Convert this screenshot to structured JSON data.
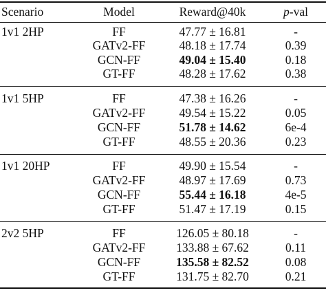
{
  "header": {
    "scenario": "Scenario",
    "model": "Model",
    "reward": "Reward@40k",
    "pval_italic": "p",
    "pval_rest": "-val"
  },
  "groups": [
    {
      "scenario": "1v1 2HP",
      "rows": [
        {
          "model": "FF",
          "reward": "47.77 ± 16.81",
          "pval": "-",
          "best": false
        },
        {
          "model": "GATv2-FF",
          "reward": "48.18 ± 17.74",
          "pval": "0.39",
          "best": false
        },
        {
          "model": "GCN-FF",
          "reward": "49.04 ± 15.40",
          "pval": "0.18",
          "best": true
        },
        {
          "model": "GT-FF",
          "reward": "48.28 ± 17.62",
          "pval": "0.38",
          "best": false
        }
      ]
    },
    {
      "scenario": "1v1 5HP",
      "rows": [
        {
          "model": "FF",
          "reward": "47.38 ± 16.26",
          "pval": "-",
          "best": false
        },
        {
          "model": "GATv2-FF",
          "reward": "49.54 ± 15.22",
          "pval": "0.05",
          "best": false
        },
        {
          "model": "GCN-FF",
          "reward": "51.78 ± 14.62",
          "pval": "6e-4",
          "best": true
        },
        {
          "model": "GT-FF",
          "reward": "48.55 ± 20.36",
          "pval": "0.23",
          "best": false
        }
      ]
    },
    {
      "scenario": "1v1 20HP",
      "rows": [
        {
          "model": "FF",
          "reward": "49.90 ± 15.54",
          "pval": "-",
          "best": false
        },
        {
          "model": "GATv2-FF",
          "reward": "48.97 ± 17.69",
          "pval": "0.73",
          "best": false
        },
        {
          "model": "GCN-FF",
          "reward": "55.44 ± 16.18",
          "pval": "4e-5",
          "best": true
        },
        {
          "model": "GT-FF",
          "reward": "51.47 ± 17.19",
          "pval": "0.15",
          "best": false
        }
      ]
    },
    {
      "scenario": "2v2 5HP",
      "rows": [
        {
          "model": "FF",
          "reward": "126.05 ± 80.18",
          "pval": "-",
          "best": false
        },
        {
          "model": "GATv2-FF",
          "reward": "133.88 ± 67.62",
          "pval": "0.11",
          "best": false
        },
        {
          "model": "GCN-FF",
          "reward": "135.58 ± 82.52",
          "pval": "0.08",
          "best": true
        },
        {
          "model": "GT-FF",
          "reward": "131.75 ± 82.70",
          "pval": "0.21",
          "best": false
        }
      ]
    }
  ]
}
